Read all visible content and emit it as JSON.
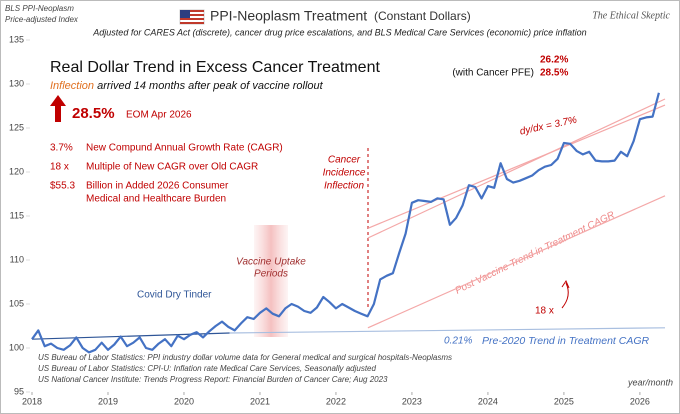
{
  "header": {
    "source_label": [
      "BLS PPI-Neoplasm",
      "Price-adjusted Index"
    ],
    "brand": "The Ethical Skeptic"
  },
  "chart_data": {
    "type": "line",
    "title": "PPI-Neoplasm  Treatment",
    "title_suffix": "(Constant Dollars)",
    "subtitle": "Adjusted for CARES Act (discrete),  cancer drug price escalations,  and BLS Medical Care Services (economic)  price  inflation",
    "x_axis_label": "year/month",
    "xlim": [
      2018,
      2026.37
    ],
    "xticks": [
      2018,
      2019,
      2020,
      2021,
      2022,
      2023,
      2024,
      2025,
      2026
    ],
    "ylim": [
      95,
      135
    ],
    "yticks": [
      95,
      100,
      105,
      110,
      115,
      120,
      125,
      130,
      135
    ],
    "grid": false,
    "x": [
      2018,
      2018.083,
      2018.167,
      2018.25,
      2018.333,
      2018.417,
      2018.5,
      2018.583,
      2018.667,
      2018.75,
      2018.833,
      2018.917,
      2019,
      2019.083,
      2019.167,
      2019.25,
      2019.333,
      2019.417,
      2019.5,
      2019.583,
      2019.667,
      2019.75,
      2019.833,
      2019.917,
      2020,
      2020.083,
      2020.167,
      2020.25,
      2020.333,
      2020.417,
      2020.5,
      2020.583,
      2020.667,
      2020.75,
      2020.833,
      2020.917,
      2021,
      2021.083,
      2021.167,
      2021.25,
      2021.333,
      2021.417,
      2021.5,
      2021.583,
      2021.667,
      2021.75,
      2021.833,
      2021.917,
      2022,
      2022.083,
      2022.167,
      2022.25,
      2022.333,
      2022.417,
      2022.5,
      2022.583,
      2022.667,
      2022.75,
      2022.833,
      2022.917,
      2023,
      2023.083,
      2023.167,
      2023.25,
      2023.333,
      2023.417,
      2023.5,
      2023.583,
      2023.667,
      2023.75,
      2023.833,
      2023.917,
      2024,
      2024.083,
      2024.167,
      2024.25,
      2024.333,
      2024.417,
      2024.5,
      2024.583,
      2024.667,
      2024.75,
      2024.833,
      2024.917,
      2025,
      2025.083,
      2025.167,
      2025.25,
      2025.333,
      2025.417,
      2025.5,
      2025.583,
      2025.667,
      2025.75,
      2025.833,
      2025.917,
      2026,
      2026.083,
      2026.167,
      2026.25
    ],
    "series": [
      {
        "color": "#4472c4",
        "values": [
          101.0,
          102.0,
          100.2,
          100.5,
          100.0,
          99.8,
          100.3,
          101.2,
          100.0,
          99.5,
          99.8,
          100.6,
          99.8,
          100.4,
          101.3,
          100.2,
          100.6,
          101.2,
          100.0,
          99.8,
          100.5,
          101.0,
          100.2,
          101.4,
          101.0,
          101.5,
          101.8,
          101.2,
          101.9,
          102.5,
          103.0,
          102.4,
          102.0,
          102.8,
          103.5,
          103.3,
          104.0,
          104.5,
          103.9,
          103.6,
          104.5,
          105.0,
          104.7,
          104.2,
          104.0,
          104.6,
          105.8,
          105.2,
          104.5,
          105.0,
          104.6,
          104.2,
          103.9,
          103.6,
          105.0,
          107.8,
          108.2,
          108.5,
          110.8,
          113.0,
          116.5,
          116.8,
          116.7,
          116.6,
          117.0,
          116.9,
          114.0,
          114.8,
          116.2,
          118.5,
          118.3,
          117.0,
          118.4,
          118.2,
          121.0,
          119.2,
          118.8,
          119.0,
          119.3,
          119.6,
          120.2,
          120.6,
          120.8,
          121.5,
          123.3,
          123.2,
          122.4,
          122.0,
          122.3,
          121.3,
          121.2,
          121.2,
          121.3,
          122.3,
          121.8,
          123.5,
          126.0,
          126.2,
          126.3,
          129.0
        ]
      }
    ],
    "trend_lines": [
      {
        "color": "#2e5597",
        "x": [
          2018,
          2020.6
        ],
        "values": [
          101.0,
          101.7
        ]
      },
      {
        "color": "#a9bfe0",
        "x": [
          2020.6,
          2026.33
        ],
        "values": [
          101.7,
          102.3
        ]
      },
      {
        "color": "#f4a8a8",
        "x": [
          2022.42,
          2026.33
        ],
        "values": [
          102.3,
          117.3
        ]
      },
      {
        "color": "#f4a8a8",
        "x": [
          2022.42,
          2026.33
        ],
        "values": [
          112.5,
          128.3
        ]
      },
      {
        "color": "#f4a8a8",
        "x": [
          2022.42,
          2026.33
        ],
        "values": [
          113.6,
          127.6
        ]
      }
    ],
    "annotations": {
      "headline": "Real Dollar Trend in Excess Cancer Treatment",
      "inflection_word": "Inflection",
      "inflection_rest": " arrived 14 months after peak of vaccine rollout",
      "big_value": "28.5%",
      "big_value_note": "EOM Apr 2026",
      "stats": [
        {
          "value": "3.7%",
          "label": [
            "New Compund Annual Growth Rate (CAGR)"
          ]
        },
        {
          "value": "18 x",
          "label": [
            "Multiple of New CAGR over Old CAGR"
          ]
        },
        {
          "value": "$55.3",
          "label": [
            "Billion in Added 2026 Consumer",
            "Medical and Healthcare Burden"
          ]
        }
      ],
      "pfe_top": "26.2%",
      "pfe_label": "(with Cancer PFE)",
      "pfe_bottom": "28.5%",
      "cancer_inflection": [
        "Cancer",
        "Incidence",
        "Inflection"
      ],
      "vaccine_periods": [
        "Vaccine Uptake",
        "Periods"
      ],
      "covid_tinder": "Covid Dry Tinder",
      "slope": "dy/dx  =  3.7%",
      "post_trend": "Post Vaccine Trend in Treatment CAGR",
      "multiple": "18  x",
      "pre_rate": "0.21%",
      "pre_trend": "Pre-2020 Trend in Treatment CAGR"
    },
    "sources": [
      "US Bureau of Labor Statistics: PPI industry dollar volume data for General medical and surgical hospitals-Neoplasms",
      "US Bureau of Labor Statistics: CPI-U: Inflation rate Medical Care Services, Seasonally adjusted",
      "US National Cancer Institute: Trends Progress Report: Financial Burden of Cancer Care; Aug 2023"
    ]
  }
}
